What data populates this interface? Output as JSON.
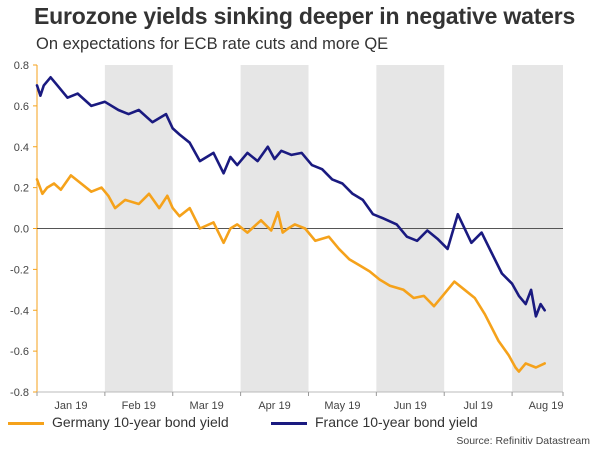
{
  "header": {
    "title": "Eurozone yields sinking deeper in negative waters",
    "subtitle": "On expectations for ECB rate cuts and more QE"
  },
  "source": "Source: Refinitiv Datastream",
  "colors": {
    "germany": "#F5A21B",
    "france": "#1A1A80",
    "shade": "#E6E6E6",
    "axis": "#F5A21B",
    "zero": "#555555"
  },
  "chart_data": {
    "type": "line",
    "title": "Eurozone yields sinking deeper in negative waters",
    "subtitle": "On expectations for ECB rate cuts and more QE",
    "xlabel": "",
    "ylabel": "",
    "ylim": [
      -0.8,
      0.8
    ],
    "yticks": [
      0.8,
      0.6,
      0.4,
      0.2,
      0.0,
      -0.2,
      -0.4,
      -0.6,
      -0.8
    ],
    "ytick_labels": [
      "0.8",
      "0.6",
      "0.4",
      "0.2",
      "0.0",
      "-0.2",
      "-0.4",
      "-0.6",
      "-0.8"
    ],
    "x_domain": [
      0,
      7.75
    ],
    "months": [
      "Jan 19",
      "Feb 19",
      "Mar 19",
      "Apr 19",
      "May 19",
      "Jun 19",
      "Jul 19",
      "Aug 19"
    ],
    "shaded_months": [
      1,
      3,
      5,
      7
    ],
    "zero_line": true,
    "legend_position": "bottom",
    "series": [
      {
        "name": "Germany 10-year bond yield",
        "color": "#F5A21B",
        "x": [
          0,
          0.08,
          0.15,
          0.25,
          0.35,
          0.5,
          0.65,
          0.8,
          0.95,
          1.05,
          1.15,
          1.3,
          1.5,
          1.65,
          1.8,
          1.92,
          2.0,
          2.1,
          2.25,
          2.4,
          2.6,
          2.75,
          2.85,
          2.95,
          3.1,
          3.3,
          3.45,
          3.55,
          3.62,
          3.7,
          3.8,
          3.95,
          4.1,
          4.3,
          4.45,
          4.6,
          4.75,
          4.9,
          5.05,
          5.2,
          5.4,
          5.55,
          5.7,
          5.85,
          6.0,
          6.15,
          6.3,
          6.45,
          6.6,
          6.8,
          6.95,
          7.05,
          7.1,
          7.2,
          7.35,
          7.48
        ],
        "y": [
          0.24,
          0.17,
          0.2,
          0.22,
          0.19,
          0.26,
          0.22,
          0.18,
          0.2,
          0.16,
          0.1,
          0.14,
          0.12,
          0.17,
          0.1,
          0.16,
          0.1,
          0.06,
          0.1,
          0.0,
          0.03,
          -0.07,
          0.0,
          0.02,
          -0.02,
          0.04,
          -0.01,
          0.08,
          -0.02,
          0.0,
          0.02,
          0.0,
          -0.06,
          -0.04,
          -0.1,
          -0.15,
          -0.18,
          -0.21,
          -0.25,
          -0.28,
          -0.3,
          -0.34,
          -0.33,
          -0.38,
          -0.32,
          -0.26,
          -0.3,
          -0.34,
          -0.42,
          -0.55,
          -0.62,
          -0.68,
          -0.7,
          -0.66,
          -0.68,
          -0.66
        ]
      },
      {
        "name": "France 10-year bond yield",
        "color": "#1A1A80",
        "x": [
          0,
          0.05,
          0.1,
          0.2,
          0.3,
          0.45,
          0.6,
          0.8,
          1.0,
          1.2,
          1.35,
          1.5,
          1.7,
          1.9,
          2.0,
          2.1,
          2.25,
          2.4,
          2.6,
          2.75,
          2.85,
          2.95,
          3.1,
          3.25,
          3.4,
          3.5,
          3.6,
          3.75,
          3.9,
          4.05,
          4.2,
          4.35,
          4.5,
          4.65,
          4.8,
          4.95,
          5.1,
          5.3,
          5.45,
          5.6,
          5.75,
          5.9,
          6.05,
          6.2,
          6.4,
          6.55,
          6.7,
          6.85,
          7.0,
          7.1,
          7.2,
          7.28,
          7.35,
          7.42,
          7.48
        ],
        "y": [
          0.7,
          0.65,
          0.7,
          0.74,
          0.7,
          0.64,
          0.66,
          0.6,
          0.62,
          0.58,
          0.56,
          0.58,
          0.52,
          0.56,
          0.49,
          0.46,
          0.42,
          0.33,
          0.37,
          0.27,
          0.35,
          0.31,
          0.37,
          0.33,
          0.4,
          0.34,
          0.38,
          0.36,
          0.37,
          0.31,
          0.29,
          0.24,
          0.22,
          0.17,
          0.14,
          0.07,
          0.05,
          0.02,
          -0.04,
          -0.06,
          -0.01,
          -0.05,
          -0.1,
          0.07,
          -0.07,
          -0.02,
          -0.12,
          -0.22,
          -0.27,
          -0.33,
          -0.37,
          -0.3,
          -0.43,
          -0.37,
          -0.4
        ]
      }
    ]
  }
}
